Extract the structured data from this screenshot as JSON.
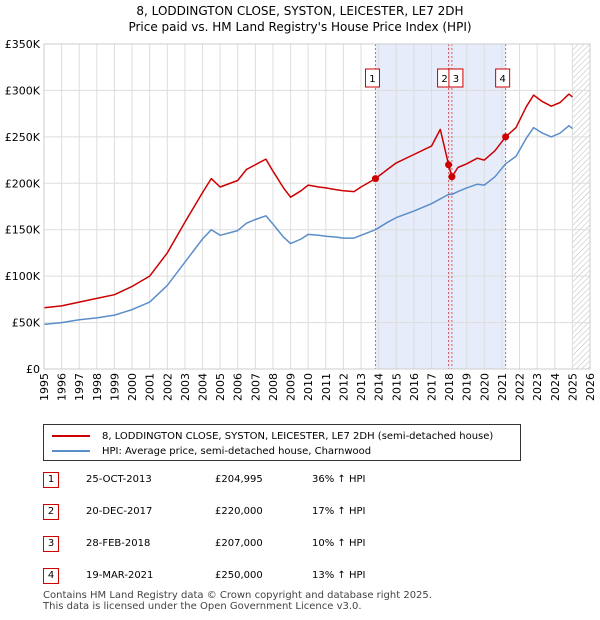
{
  "chart_data": {
    "type": "line",
    "title": "8, LODDINGTON CLOSE, SYSTON, LEICESTER, LE7 2DH",
    "subtitle": "Price paid vs. HM Land Registry's House Price Index (HPI)",
    "xlim": [
      1995,
      2026
    ],
    "ylim": [
      0,
      350000
    ],
    "y_ticks": [
      {
        "value": 0,
        "label": "£0"
      },
      {
        "value": 50000,
        "label": "£50K"
      },
      {
        "value": 100000,
        "label": "£100K"
      },
      {
        "value": 150000,
        "label": "£150K"
      },
      {
        "value": 200000,
        "label": "£200K"
      },
      {
        "value": 250000,
        "label": "£250K"
      },
      {
        "value": 300000,
        "label": "£300K"
      },
      {
        "value": 350000,
        "label": "£350K"
      }
    ],
    "x_ticks": [
      "1995",
      "1996",
      "1997",
      "1998",
      "1999",
      "2000",
      "2001",
      "2002",
      "2003",
      "2004",
      "2005",
      "2006",
      "2007",
      "2008",
      "2009",
      "2010",
      "2011",
      "2012",
      "2013",
      "2014",
      "2015",
      "2016",
      "2017",
      "2018",
      "2019",
      "2020",
      "2021",
      "2022",
      "2023",
      "2024",
      "2025",
      "2026"
    ],
    "shaded_ranges": [
      [
        2013.82,
        2021.21
      ]
    ],
    "future_hatch_from": 2025.0,
    "sale_markers": [
      {
        "label": "1",
        "x": 2013.82,
        "y": 204995
      },
      {
        "label": "2",
        "x": 2017.97,
        "y": 220000
      },
      {
        "label": "3",
        "x": 2018.16,
        "y": 207000
      },
      {
        "label": "4",
        "x": 2021.21,
        "y": 250000
      }
    ],
    "series": [
      {
        "name": "8, LODDINGTON CLOSE, SYSTON, LEICESTER, LE7 2DH (semi-detached house)",
        "color": "#cc0000",
        "points": [
          [
            1995,
            66000
          ],
          [
            1996,
            68000
          ],
          [
            1997,
            72000
          ],
          [
            1998,
            76000
          ],
          [
            1999,
            80000
          ],
          [
            2000,
            89000
          ],
          [
            2001,
            100000
          ],
          [
            2002,
            125000
          ],
          [
            2003,
            158000
          ],
          [
            2004,
            190000
          ],
          [
            2004.5,
            205000
          ],
          [
            2005,
            196000
          ],
          [
            2006,
            203000
          ],
          [
            2006.5,
            215000
          ],
          [
            2007,
            220000
          ],
          [
            2007.6,
            226000
          ],
          [
            2008,
            213000
          ],
          [
            2008.6,
            195000
          ],
          [
            2009,
            185000
          ],
          [
            2009.6,
            192000
          ],
          [
            2010,
            198000
          ],
          [
            2010.6,
            196000
          ],
          [
            2011,
            195000
          ],
          [
            2011.6,
            193000
          ],
          [
            2012,
            192000
          ],
          [
            2012.6,
            191000
          ],
          [
            2013,
            196000
          ],
          [
            2013.82,
            204995
          ],
          [
            2014.5,
            215000
          ],
          [
            2015,
            222000
          ],
          [
            2016,
            231000
          ],
          [
            2017,
            240000
          ],
          [
            2017.5,
            258000
          ],
          [
            2017.97,
            220000
          ],
          [
            2018.16,
            207000
          ],
          [
            2018.5,
            217000
          ],
          [
            2019,
            221000
          ],
          [
            2019.6,
            227000
          ],
          [
            2020,
            225000
          ],
          [
            2020.6,
            235000
          ],
          [
            2021.21,
            250000
          ],
          [
            2021.8,
            260000
          ],
          [
            2022.4,
            283000
          ],
          [
            2022.8,
            295000
          ],
          [
            2023.3,
            288000
          ],
          [
            2023.8,
            283000
          ],
          [
            2024.3,
            287000
          ],
          [
            2024.8,
            296000
          ],
          [
            2025,
            293000
          ]
        ]
      },
      {
        "name": "HPI: Average price, semi-detached house, Charnwood",
        "color": "#5b8ec9",
        "points": [
          [
            1995,
            48000
          ],
          [
            1996,
            50000
          ],
          [
            1997,
            53000
          ],
          [
            1998,
            55000
          ],
          [
            1999,
            58000
          ],
          [
            2000,
            64000
          ],
          [
            2001,
            72000
          ],
          [
            2002,
            90000
          ],
          [
            2003,
            115000
          ],
          [
            2004,
            140000
          ],
          [
            2004.5,
            150000
          ],
          [
            2005,
            144000
          ],
          [
            2006,
            149000
          ],
          [
            2006.5,
            157000
          ],
          [
            2007,
            161000
          ],
          [
            2007.6,
            165000
          ],
          [
            2008,
            156000
          ],
          [
            2008.6,
            142000
          ],
          [
            2009,
            135000
          ],
          [
            2009.6,
            140000
          ],
          [
            2010,
            145000
          ],
          [
            2010.6,
            144000
          ],
          [
            2011,
            143000
          ],
          [
            2011.6,
            142000
          ],
          [
            2012,
            141000
          ],
          [
            2012.6,
            141000
          ],
          [
            2013,
            144000
          ],
          [
            2013.82,
            150000
          ],
          [
            2014.5,
            158000
          ],
          [
            2015,
            163000
          ],
          [
            2016,
            170000
          ],
          [
            2017,
            178000
          ],
          [
            2017.97,
            188000
          ],
          [
            2018.16,
            188000
          ],
          [
            2018.5,
            191000
          ],
          [
            2019,
            195000
          ],
          [
            2019.6,
            199000
          ],
          [
            2020,
            198000
          ],
          [
            2020.6,
            207000
          ],
          [
            2021.21,
            221000
          ],
          [
            2021.8,
            229000
          ],
          [
            2022.4,
            249000
          ],
          [
            2022.8,
            260000
          ],
          [
            2023.3,
            254000
          ],
          [
            2023.8,
            250000
          ],
          [
            2024.3,
            254000
          ],
          [
            2024.8,
            262000
          ],
          [
            2025,
            259000
          ]
        ]
      }
    ]
  },
  "legend": {
    "property_label": "8, LODDINGTON CLOSE, SYSTON, LEICESTER, LE7 2DH (semi-detached house)",
    "property_color": "#cc0000",
    "hpi_label": "HPI: Average price, semi-detached house, Charnwood",
    "hpi_color": "#5b8ec9"
  },
  "sales": [
    {
      "num": "1",
      "date": "25-OCT-2013",
      "price": "£204,995",
      "hpi": "36% ↑ HPI"
    },
    {
      "num": "2",
      "date": "20-DEC-2017",
      "price": "£220,000",
      "hpi": "17% ↑ HPI"
    },
    {
      "num": "3",
      "date": "28-FEB-2018",
      "price": "£207,000",
      "hpi": "10% ↑ HPI"
    },
    {
      "num": "4",
      "date": "19-MAR-2021",
      "price": "£250,000",
      "hpi": "13% ↑ HPI"
    }
  ],
  "footer": {
    "line1": "Contains HM Land Registry data © Crown copyright and database right 2025.",
    "line2": "This data is licensed under the Open Government Licence v3.0."
  }
}
